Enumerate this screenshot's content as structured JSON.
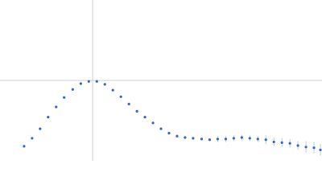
{
  "chart_data": {
    "type": "scatter",
    "x": [
      0.45,
      0.6,
      0.75,
      0.9,
      1.05,
      1.2,
      1.36,
      1.51,
      1.66,
      1.81,
      1.96,
      2.11,
      2.26,
      2.41,
      2.56,
      2.71,
      2.86,
      3.01,
      3.16,
      3.31,
      3.46,
      3.61,
      3.77,
      3.92,
      4.07,
      4.22,
      4.37,
      4.52,
      4.67,
      4.82,
      4.97,
      5.12,
      5.27,
      5.42,
      5.57,
      5.72,
      5.87,
      5.99
    ],
    "series": [
      {
        "color": "#3a66c4",
        "error_color": "#a9bfe8",
        "values": [
          0.2,
          0.31,
          0.44,
          0.6,
          0.74,
          0.87,
          0.98,
          1.06,
          1.09,
          1.09,
          1.05,
          0.97,
          0.88,
          0.78,
          0.68,
          0.6,
          0.52,
          0.44,
          0.38,
          0.34,
          0.32,
          0.31,
          0.3,
          0.29,
          0.3,
          0.3,
          0.31,
          0.32,
          0.31,
          0.3,
          0.29,
          0.26,
          0.25,
          0.24,
          0.21,
          0.19,
          0.18,
          0.15
        ],
        "errors": [
          0.01,
          0.01,
          0.01,
          0.01,
          0.01,
          0.01,
          0.01,
          0.01,
          0.01,
          0.01,
          0.01,
          0.01,
          0.01,
          0.01,
          0.01,
          0.01,
          0.01,
          0.01,
          0.02,
          0.02,
          0.02,
          0.02,
          0.02,
          0.02,
          0.04,
          0.04,
          0.04,
          0.04,
          0.04,
          0.04,
          0.06,
          0.06,
          0.06,
          0.06,
          0.06,
          0.08,
          0.08,
          0.08
        ]
      }
    ],
    "xlim": [
      0,
      6.02
    ],
    "ylim": [
      0,
      2.208
    ],
    "vline": 1.732,
    "hline": 1.104,
    "ref_color": "#d0d0d0"
  }
}
